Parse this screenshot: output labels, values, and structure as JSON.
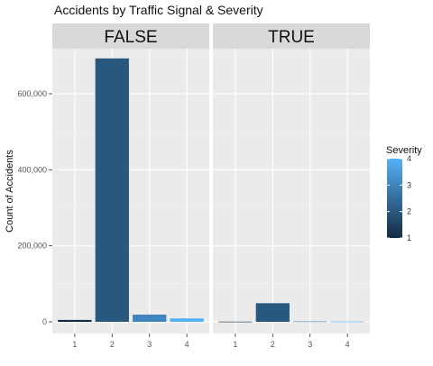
{
  "chart_data": {
    "type": "bar",
    "title": "Accidents by Traffic Signal & Severity",
    "xlabel": "",
    "ylabel": "Count of Accidents",
    "ylim": [
      0,
      700000
    ],
    "y_ticks": [
      0,
      200000,
      400000,
      600000
    ],
    "y_tick_labels": [
      "0",
      "200,000",
      "400,000",
      "600,000"
    ],
    "categories": [
      "1",
      "2",
      "3",
      "4"
    ],
    "facets": [
      {
        "label": "FALSE",
        "values": [
          5000,
          693000,
          19000,
          9000
        ]
      },
      {
        "label": "TRUE",
        "values": [
          500,
          49000,
          1000,
          800
        ]
      }
    ],
    "fill_scale": {
      "title": "Severity",
      "min": 1,
      "max": 4,
      "breaks": [
        "1",
        "2",
        "3",
        "4"
      ],
      "low_color": "#132B43",
      "high_color": "#56B1F7"
    },
    "panel_background": "#EBEBEB",
    "strip_background": "#D9D9D9",
    "grid": true,
    "legend_position": "right"
  }
}
